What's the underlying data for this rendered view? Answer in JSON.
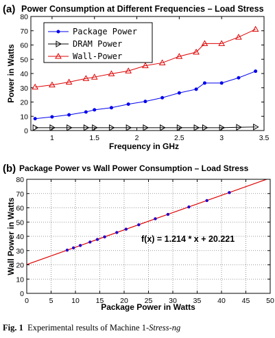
{
  "chart_data": [
    {
      "type": "line",
      "panel_label": "(a)",
      "title": "Power Consumption at Different Frequencies – Load Stress",
      "xlabel": "Frequency in GHz",
      "ylabel": "Power in Watts",
      "xlim": [
        0.75,
        3.5
      ],
      "ylim": [
        0,
        80
      ],
      "xticks": [
        1,
        1.5,
        2,
        2.5,
        3,
        3.5
      ],
      "yticks": [
        0,
        10,
        20,
        30,
        40,
        50,
        60,
        70,
        80
      ],
      "grid": false,
      "legend_position": "top-left",
      "x": [
        0.8,
        1.0,
        1.2,
        1.4,
        1.5,
        1.7,
        1.9,
        2.1,
        2.3,
        2.5,
        2.7,
        2.8,
        3.0,
        3.2,
        3.4
      ],
      "series": [
        {
          "name": "Package Power",
          "color": "#0000ee",
          "marker": "circle",
          "values": [
            8.3,
            9.6,
            11.0,
            13.0,
            14.5,
            16.0,
            18.5,
            20.4,
            23.0,
            26.4,
            29.0,
            33.3,
            33.3,
            37.0,
            41.6
          ]
        },
        {
          "name": "DRAM Power",
          "color": "#000000",
          "marker": "triangle-right",
          "values": [
            2,
            2,
            2,
            2,
            2,
            2,
            2,
            2,
            2,
            2,
            2,
            2,
            2,
            2.3,
            2.5
          ]
        },
        {
          "name": "Wall-Power",
          "color": "#dd0000",
          "marker": "triangle-up",
          "values": [
            30.5,
            32.0,
            34.0,
            36.5,
            37.5,
            39.8,
            41.8,
            45.5,
            47.5,
            52.0,
            55.0,
            61.0,
            61.0,
            65.5,
            71.0
          ]
        }
      ]
    },
    {
      "type": "scatter",
      "panel_label": "(b)",
      "title": "Package Power vs Wall Power Consumption – Load Stress",
      "xlabel": "Package Power in Watts",
      "ylabel": "Wall Power in Watts",
      "xlim": [
        0,
        50
      ],
      "ylim": [
        0,
        80
      ],
      "xticks": [
        0,
        5,
        10,
        15,
        20,
        25,
        30,
        35,
        40,
        45,
        50
      ],
      "yticks": [
        0,
        10,
        20,
        30,
        40,
        50,
        60,
        70,
        80
      ],
      "grid": true,
      "annotation": "f(x) = 1.214 * x + 20.221",
      "fit": {
        "slope": 1.214,
        "intercept": 20.221,
        "color": "#dd0000"
      },
      "points": {
        "color": "#2200cc",
        "x": [
          8.3,
          9.6,
          11.0,
          13.0,
          14.5,
          16.0,
          18.5,
          20.4,
          23.0,
          26.4,
          29.0,
          33.3,
          37.0,
          41.6
        ],
        "y": [
          30.3,
          31.9,
          33.6,
          36.0,
          37.8,
          39.6,
          42.7,
          45.0,
          48.1,
          52.3,
          55.4,
          60.6,
          65.1,
          70.7
        ]
      }
    }
  ],
  "caption": {
    "label": "Fig. 1",
    "text": "Experimental results of Machine 1-",
    "italic": "Stress-ng"
  }
}
